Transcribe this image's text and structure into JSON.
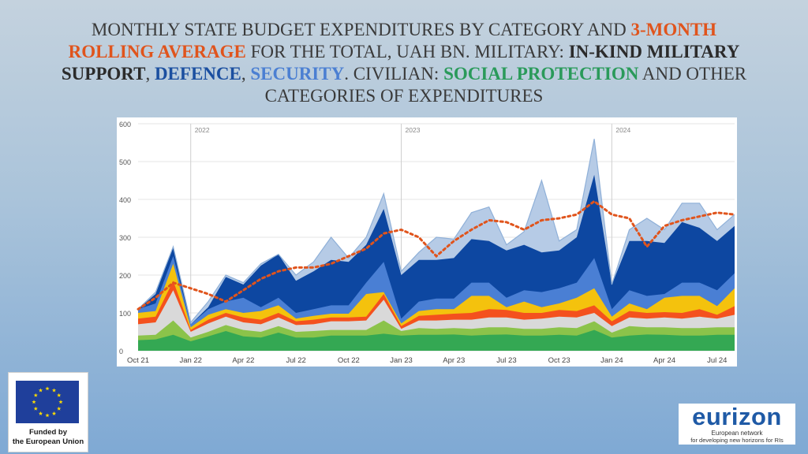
{
  "title": {
    "p1": "MONTHLY STATE BUDGET EXPENDITURES BY CATEGORY AND ",
    "p2": "3-MONTH ROLLING AVERAGE",
    "p3": " FOR THE TOTAL, UAH BN. MILITARY: ",
    "p4": "IN-KIND MILITARY SUPPORT",
    "p5": ", ",
    "p6": "DEFENCE",
    "p7": ", ",
    "p8": "SECURITY",
    "p9": ". CIVILIAN: ",
    "p10": "SOCIAL PROTECTION",
    "p11": " AND OTHER CATEGORIES OF EXPENDITURES"
  },
  "eu_logo": {
    "line1": "Funded by",
    "line2": "the European Union"
  },
  "eurizon_logo": {
    "word": "eurizon",
    "line1": "European network",
    "line2": "for developing new horizons for RIs"
  },
  "chart_data": {
    "type": "area",
    "x": [
      "Oct 21",
      "Nov 21",
      "Dec 21",
      "Jan 22",
      "Feb 22",
      "Mar 22",
      "Apr 22",
      "May 22",
      "Jun 22",
      "Jul 22",
      "Aug 22",
      "Sep 22",
      "Oct 22",
      "Nov 22",
      "Dec 22",
      "Jan 23",
      "Feb 23",
      "Mar 23",
      "Apr 23",
      "May 23",
      "Jun 23",
      "Jul 23",
      "Aug 23",
      "Sep 23",
      "Oct 23",
      "Nov 23",
      "Dec 23",
      "Jan 24",
      "Feb 24",
      "Mar 24",
      "Apr 24",
      "May 24",
      "Jun 24",
      "Jul 24",
      "Aug 24"
    ],
    "x_tick_labels": [
      "Oct 21",
      "Jan 22",
      "Apr 22",
      "Jul 22",
      "Oct 22",
      "Jan 23",
      "Apr 23",
      "Jul 23",
      "Oct 23",
      "Jan 24",
      "Apr 24",
      "Jul 24"
    ],
    "year_labels": [
      {
        "label": "2022",
        "at": "Jan 22"
      },
      {
        "label": "2023",
        "at": "Jan 23"
      },
      {
        "label": "2024",
        "at": "Jan 24"
      }
    ],
    "ylim": [
      0,
      600
    ],
    "yticks": [
      0,
      100,
      200,
      300,
      400,
      500,
      600
    ],
    "grid": true,
    "series_note": "stacked cumulative tops, bottom to top",
    "series": [
      {
        "color": "#34a853",
        "values": [
          28,
          30,
          42,
          25,
          38,
          52,
          38,
          35,
          48,
          35,
          35,
          40,
          40,
          40,
          45,
          40,
          42,
          42,
          43,
          40,
          42,
          43,
          40,
          40,
          42,
          40,
          55,
          35,
          40,
          43,
          42,
          40,
          40,
          42,
          42
        ]
      },
      {
        "color": "#8bc34a",
        "values": [
          40,
          42,
          80,
          35,
          50,
          68,
          55,
          50,
          65,
          50,
          52,
          55,
          55,
          55,
          80,
          52,
          60,
          58,
          60,
          58,
          62,
          62,
          58,
          58,
          62,
          60,
          78,
          48,
          65,
          62,
          62,
          60,
          60,
          62,
          62
        ]
      },
      {
        "color": "#d9d9d9",
        "values": [
          70,
          75,
          160,
          50,
          72,
          90,
          75,
          70,
          88,
          68,
          70,
          78,
          78,
          80,
          135,
          58,
          80,
          80,
          82,
          82,
          88,
          88,
          82,
          85,
          90,
          88,
          100,
          65,
          88,
          85,
          88,
          85,
          90,
          85,
          95
        ]
      },
      {
        "color": "#f4511e",
        "values": [
          85,
          90,
          185,
          55,
          82,
          100,
          88,
          82,
          100,
          78,
          82,
          88,
          88,
          90,
          150,
          65,
          92,
          95,
          98,
          100,
          110,
          108,
          100,
          100,
          108,
          105,
          120,
          78,
          105,
          100,
          102,
          100,
          110,
          95,
          118
        ]
      },
      {
        "color": "#f4c20d",
        "values": [
          100,
          105,
          230,
          62,
          95,
          110,
          100,
          105,
          120,
          85,
          92,
          98,
          98,
          150,
          155,
          72,
          105,
          110,
          110,
          145,
          145,
          115,
          130,
          115,
          125,
          140,
          165,
          90,
          125,
          110,
          140,
          145,
          145,
          118,
          165
        ]
      },
      {
        "color": "#4a7fd4",
        "values": [
          110,
          125,
          250,
          70,
          110,
          130,
          140,
          115,
          140,
          100,
          110,
          120,
          120,
          180,
          235,
          85,
          130,
          138,
          138,
          180,
          180,
          140,
          160,
          155,
          165,
          180,
          245,
          110,
          160,
          145,
          150,
          180,
          180,
          160,
          205
        ]
      },
      {
        "color": "#0d47a1",
        "values": [
          110,
          150,
          275,
          70,
          115,
          195,
          175,
          225,
          255,
          185,
          210,
          240,
          235,
          280,
          375,
          200,
          240,
          240,
          245,
          295,
          290,
          265,
          280,
          260,
          265,
          300,
          465,
          175,
          290,
          290,
          285,
          340,
          325,
          290,
          330
        ]
      },
      {
        "color": "#b6cbe6",
        "values": [
          110,
          155,
          275,
          75,
          130,
          200,
          180,
          230,
          255,
          200,
          235,
          300,
          245,
          300,
          415,
          210,
          260,
          300,
          295,
          365,
          380,
          280,
          315,
          450,
          290,
          320,
          560,
          175,
          320,
          350,
          320,
          390,
          390,
          320,
          360
        ]
      }
    ],
    "rolling_average": {
      "color": "#e0541c",
      "values": [
        110,
        140,
        180,
        165,
        150,
        130,
        160,
        190,
        210,
        220,
        220,
        230,
        250,
        270,
        310,
        320,
        300,
        250,
        290,
        320,
        345,
        340,
        320,
        345,
        350,
        360,
        395,
        360,
        350,
        275,
        330,
        345,
        355,
        365,
        360
      ]
    }
  }
}
